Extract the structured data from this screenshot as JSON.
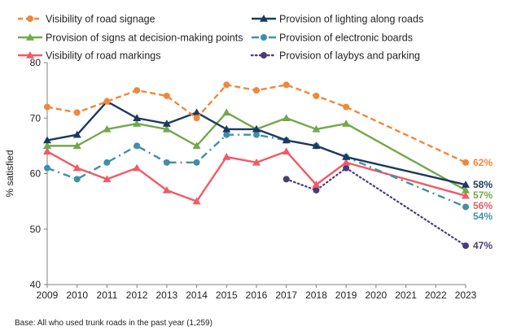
{
  "chart_data": {
    "type": "line",
    "title": "",
    "xlabel": "",
    "ylabel": "% satisfied",
    "ylim": [
      40,
      80
    ],
    "yticks": [
      40,
      50,
      60,
      70,
      80
    ],
    "x": [
      2009,
      2010,
      2011,
      2012,
      2013,
      2014,
      2015,
      2016,
      2017,
      2018,
      2019,
      2020,
      2021,
      2022,
      2023
    ],
    "xtick_labels": [
      "2009",
      "2010",
      "2011",
      "2012",
      "2013",
      "2014",
      "2015",
      "2016",
      "2017",
      "2018",
      "2019",
      "2020",
      "2021",
      "2022",
      "2023"
    ],
    "grid": false,
    "legend_position": "top",
    "series": [
      {
        "name": "Visibility of road signage",
        "color": "#f0883a",
        "dash": "dashed",
        "marker": "circle",
        "values": [
          72,
          71,
          73,
          75,
          74,
          70,
          76,
          75,
          76,
          74,
          72,
          null,
          null,
          null,
          62
        ],
        "end_label": "62%"
      },
      {
        "name": "Provision of lighting along roads",
        "color": "#1b3a5f",
        "dash": "solid",
        "marker": "triangle",
        "values": [
          66,
          67,
          73,
          70,
          69,
          71,
          68,
          68,
          66,
          65,
          63,
          null,
          null,
          null,
          58
        ],
        "end_label": "58%"
      },
      {
        "name": "Provision of signs at decision-making points",
        "color": "#72a84b",
        "dash": "solid",
        "marker": "triangle",
        "values": [
          65,
          65,
          68,
          69,
          68,
          65,
          71,
          68,
          70,
          68,
          69,
          null,
          null,
          null,
          57
        ],
        "end_label": "57%"
      },
      {
        "name": "Provision of electronic boards",
        "color": "#3f8fab",
        "dash": "dashdot",
        "marker": "circle",
        "values": [
          61,
          59,
          62,
          65,
          62,
          62,
          67,
          67,
          66,
          65,
          63,
          null,
          null,
          null,
          54
        ],
        "end_label": "54%"
      },
      {
        "name": "Visibility of road markings",
        "color": "#ef5b66",
        "dash": "solid",
        "marker": "triangle",
        "values": [
          64,
          61,
          59,
          61,
          57,
          55,
          63,
          62,
          64,
          58,
          62,
          null,
          null,
          null,
          56
        ],
        "end_label": "56%"
      },
      {
        "name": "Provision of laybys and parking",
        "color": "#4a3b78",
        "dash": "dotted",
        "marker": "circle",
        "values": [
          null,
          null,
          null,
          null,
          null,
          null,
          null,
          null,
          59,
          57,
          61,
          null,
          null,
          null,
          47
        ],
        "end_label": "47%"
      }
    ],
    "legend_order": [
      0,
      1,
      2,
      3,
      4,
      5
    ]
  },
  "footnote": "Base: All who used trunk roads in the past year (1,259)"
}
